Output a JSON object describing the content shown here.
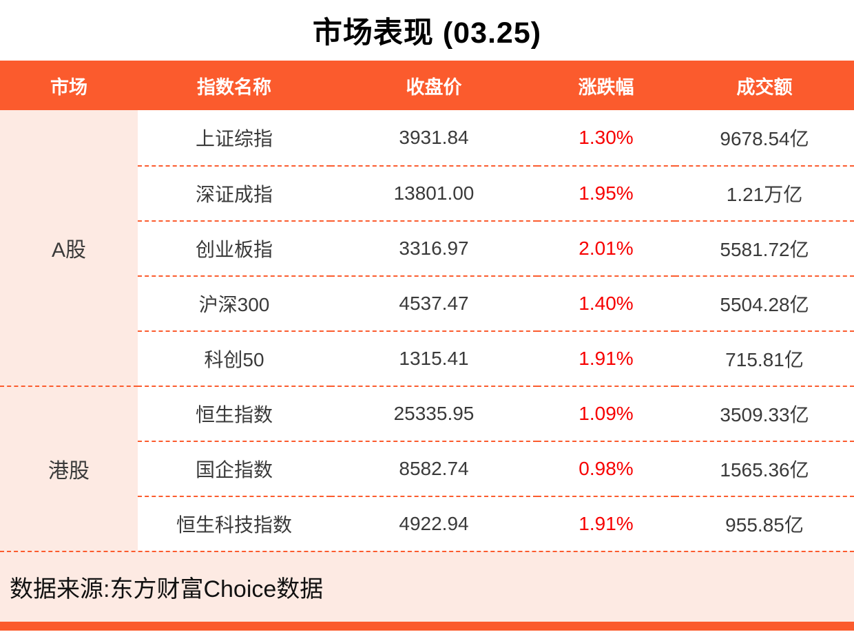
{
  "title": "市场表现 (03.25)",
  "colors": {
    "accent_orange": "#fb5b2d",
    "pale_pink": "#fdeae3",
    "change_red": "#f70000",
    "body_text": "#3a3a3a"
  },
  "chart_data": {
    "type": "table",
    "title": "市场表现 (03.25)",
    "columns": [
      "市场",
      "指数名称",
      "收盘价",
      "涨跌幅",
      "成交额"
    ],
    "groups": [
      {
        "market": "A股",
        "rows": [
          {
            "name": "上证综指",
            "close": "3931.84",
            "change": "1.30%",
            "turnover": "9678.54亿"
          },
          {
            "name": "深证成指",
            "close": "13801.00",
            "change": "1.95%",
            "turnover": "1.21万亿"
          },
          {
            "name": "创业板指",
            "close": "3316.97",
            "change": "2.01%",
            "turnover": "5581.72亿"
          },
          {
            "name": "沪深300",
            "close": "4537.47",
            "change": "1.40%",
            "turnover": "5504.28亿"
          },
          {
            "name": "科创50",
            "close": "1315.41",
            "change": "1.91%",
            "turnover": "715.81亿"
          }
        ]
      },
      {
        "market": "港股",
        "rows": [
          {
            "name": "恒生指数",
            "close": "25335.95",
            "change": "1.09%",
            "turnover": "3509.33亿"
          },
          {
            "name": "国企指数",
            "close": "8582.74",
            "change": "0.98%",
            "turnover": "1565.36亿"
          },
          {
            "name": "恒生科技指数",
            "close": "4922.94",
            "change": "1.91%",
            "turnover": "955.85亿"
          }
        ]
      }
    ],
    "source": "数据来源:东方财富Choice数据"
  }
}
